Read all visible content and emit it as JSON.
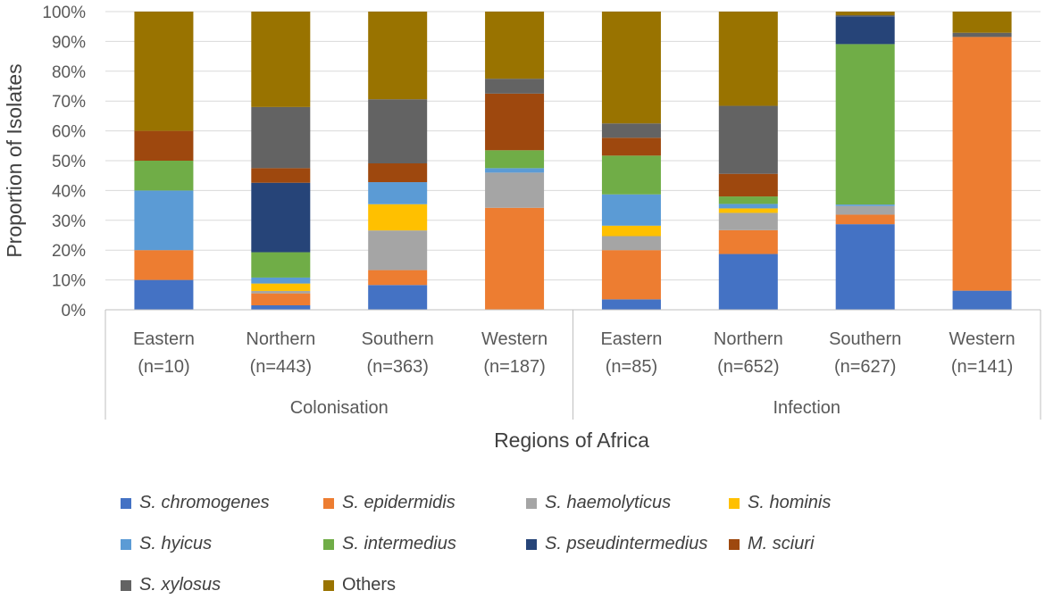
{
  "chart_data": {
    "type": "stacked-bar-100",
    "ylabel": "Proportion of Isolates",
    "xlabel": "Regions of Africa",
    "ylim": [
      0,
      100
    ],
    "yticks": [
      "0%",
      "10%",
      "20%",
      "30%",
      "40%",
      "50%",
      "60%",
      "70%",
      "80%",
      "90%",
      "100%"
    ],
    "groups": [
      {
        "name": "Colonisation",
        "categories": [
          {
            "region": "Eastern",
            "n": "(n=10)"
          },
          {
            "region": "Northern",
            "n": "(n=443)"
          },
          {
            "region": "Southern",
            "n": "(n=363)"
          },
          {
            "region": "Western",
            "n": "(n=187)"
          }
        ]
      },
      {
        "name": "Infection",
        "categories": [
          {
            "region": "Eastern",
            "n": "(n=85)"
          },
          {
            "region": "Northern",
            "n": "(n=652)"
          },
          {
            "region": "Southern",
            "n": "(n=627)"
          },
          {
            "region": "Western",
            "n": "(n=141)"
          }
        ]
      }
    ],
    "series": [
      {
        "name": "S. chromogenes",
        "italic": true,
        "color": "#4472C4",
        "values": [
          10,
          1.5,
          8.3,
          0,
          3.5,
          18.7,
          28.7,
          6.4
        ]
      },
      {
        "name": "S. epidermidis",
        "italic": true,
        "color": "#ED7D31",
        "values": [
          10,
          4,
          5,
          34.2,
          16.5,
          8,
          3.2,
          85.1
        ]
      },
      {
        "name": "S. haemolyticus",
        "italic": true,
        "color": "#A5A5A5",
        "values": [
          0,
          0.8,
          13.3,
          11.8,
          4.7,
          5.8,
          2.9,
          0
        ]
      },
      {
        "name": "S. hominis",
        "italic": true,
        "color": "#FFC000",
        "values": [
          0,
          2.5,
          8.8,
          0,
          3.5,
          1.5,
          0,
          0
        ]
      },
      {
        "name": "S. hyicus",
        "italic": true,
        "color": "#5B9BD5",
        "values": [
          20,
          2,
          7.4,
          1.5,
          10.5,
          1.5,
          0.5,
          0
        ]
      },
      {
        "name": "S. intermedius",
        "italic": true,
        "color": "#70AD47",
        "values": [
          10,
          8.5,
          0,
          6,
          13,
          2.5,
          53.8,
          0
        ]
      },
      {
        "name": "S. pseudintermedius",
        "italic": true,
        "color": "#264478",
        "values": [
          0,
          23.3,
          0,
          0,
          0,
          0,
          9.3,
          0
        ]
      },
      {
        "name": "M. sciuri",
        "italic": true,
        "color": "#9E480E",
        "values": [
          10,
          4.9,
          6.3,
          19,
          6,
          7.6,
          0,
          0
        ]
      },
      {
        "name": "S. xylosus",
        "italic": true,
        "color": "#636363",
        "values": [
          0,
          20.5,
          21.5,
          5,
          4.8,
          22.8,
          0.4,
          1.4
        ]
      },
      {
        "name": "Others",
        "italic": false,
        "color": "#997300",
        "values": [
          40,
          32,
          29.4,
          22.5,
          37.5,
          31.6,
          1.2,
          7.1
        ]
      }
    ]
  }
}
